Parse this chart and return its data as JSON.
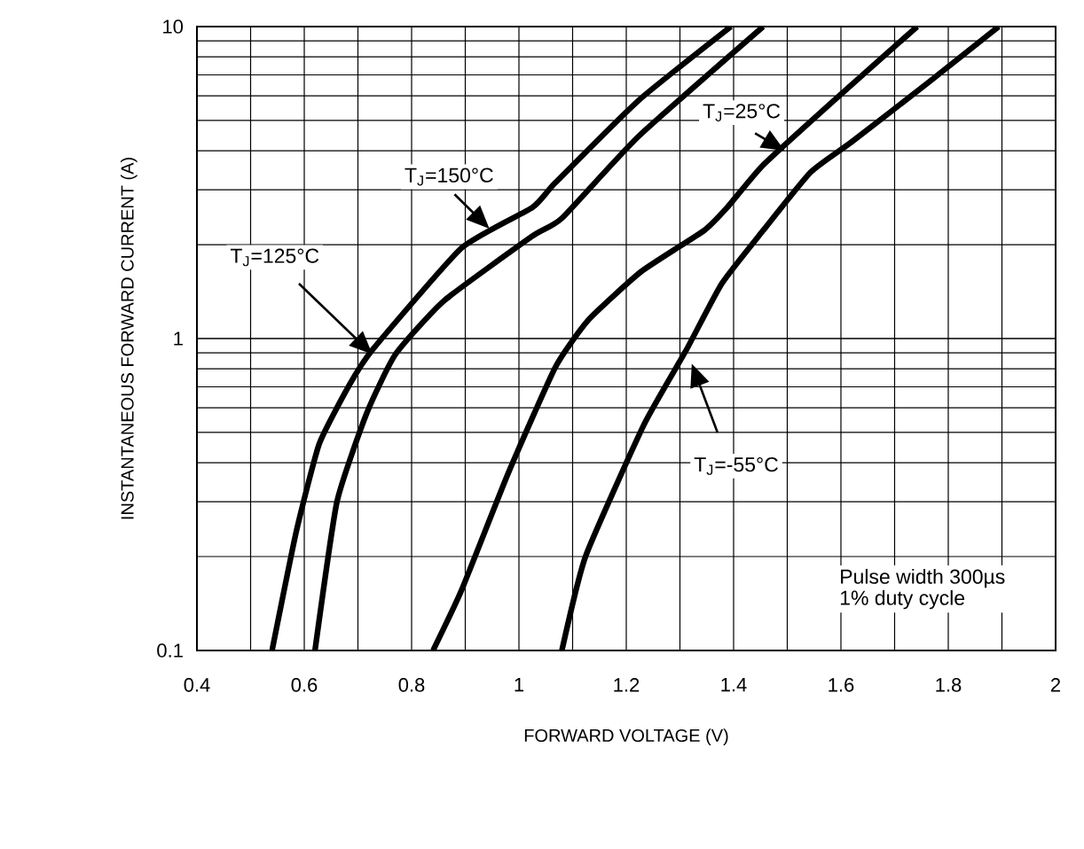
{
  "chart_data": {
    "type": "line",
    "xlabel": "FORWARD VOLTAGE (V)",
    "ylabel": "INSTANTANEOUS FORWARD CURRENT (A)",
    "log": "y",
    "grid": true,
    "line_style": "solid",
    "xlim": [
      0.4,
      2
    ],
    "ylim": [
      0.1,
      10
    ],
    "xticks": [
      0.4,
      0.6,
      0.8,
      1,
      1.2,
      1.4,
      1.6,
      1.8,
      2
    ],
    "yticks": [
      0.1,
      1,
      10
    ],
    "series": [
      {
        "name": "T$_{J}$=150°C",
        "color": "#000000",
        "x": [
          0.54,
          0.585,
          0.628,
          0.684,
          0.727,
          0.893,
          1.025,
          1.068,
          1.223,
          1.395
        ],
        "values": [
          0.1,
          0.24,
          0.46,
          0.71,
          0.92,
          1.95,
          2.63,
          3.16,
          5.8,
          10
        ]
      },
      {
        "name": "T$_{J}$=125°C",
        "color": "#000000",
        "x": [
          0.62,
          0.661,
          0.717,
          0.77,
          0.86,
          1.025,
          1.08,
          1.223,
          1.455
        ],
        "values": [
          0.1,
          0.3,
          0.58,
          0.89,
          1.32,
          2.13,
          2.43,
          4.45,
          10
        ]
      },
      {
        "name": "T$_{J}$=25°C",
        "color": "#000000",
        "x": [
          0.84,
          0.893,
          0.98,
          1.068,
          1.13,
          1.228,
          1.345,
          1.388,
          1.455,
          1.587,
          1.742
        ],
        "values": [
          0.1,
          0.156,
          0.37,
          0.81,
          1.15,
          1.64,
          2.22,
          2.63,
          3.6,
          5.8,
          10
        ]
      },
      {
        "name": "T$_{J}$=-55°C",
        "color": "#000000",
        "x": [
          1.08,
          1.124,
          1.233,
          1.312,
          1.378,
          1.455,
          1.544,
          1.62,
          1.762,
          1.894
        ],
        "values": [
          0.1,
          0.2,
          0.53,
          0.92,
          1.5,
          2.22,
          3.42,
          4.27,
          6.6,
          10
        ]
      }
    ],
    "annotations": [
      "Pulse width 300µs\n1% duty cycle"
    ]
  }
}
